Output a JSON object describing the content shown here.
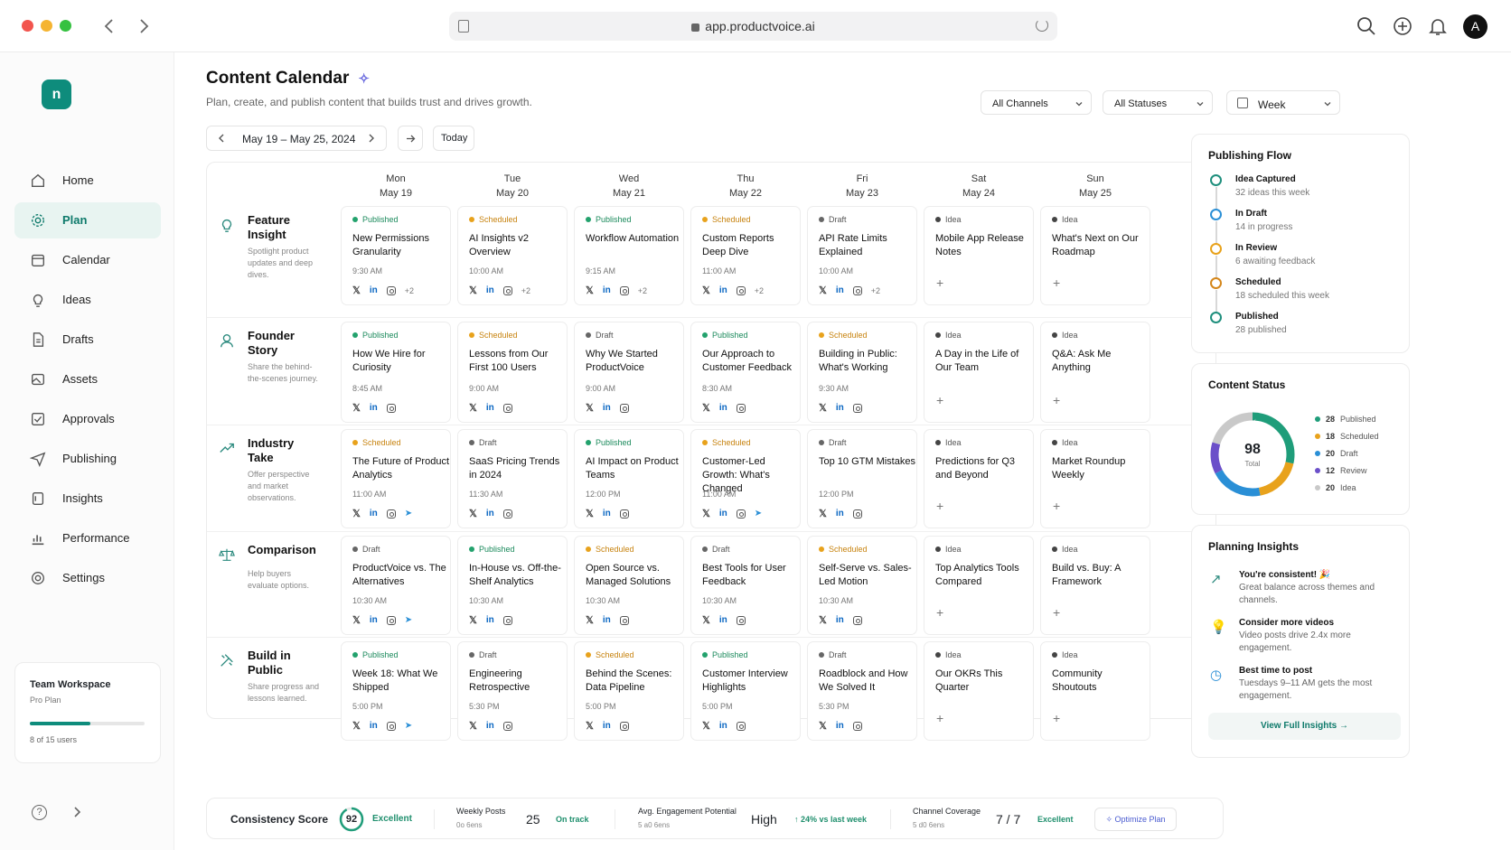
{
  "browser": {
    "url": "app.productvoice.ai",
    "avatar": "A"
  },
  "sidebar": {
    "logo": "n",
    "items": [
      {
        "label": "Home",
        "icon": "home-icon"
      },
      {
        "label": "Plan",
        "icon": "gear-icon",
        "active": true
      },
      {
        "label": "Calendar",
        "icon": "calendar-icon"
      },
      {
        "label": "Ideas",
        "icon": "lightbulb-icon"
      },
      {
        "label": "Drafts",
        "icon": "document-icon"
      },
      {
        "label": "Assets",
        "icon": "image-icon"
      },
      {
        "label": "Approvals",
        "icon": "check-icon"
      },
      {
        "label": "Publishing",
        "icon": "send-icon"
      },
      {
        "label": "Insights",
        "icon": "layers-icon"
      },
      {
        "label": "Performance",
        "icon": "bar-chart-icon"
      },
      {
        "label": "Settings",
        "icon": "settings-icon"
      }
    ],
    "workspace": {
      "name": "Team Workspace",
      "plan": "Pro Plan",
      "usage": "8 of 15 users",
      "progress": 0.53
    }
  },
  "header": {
    "title": "Content Calendar",
    "subtitle": "Plan, create, and publish content that builds trust and drives growth.",
    "filters": {
      "channels": "All Channels",
      "statuses": "All Statuses",
      "view": "Week"
    },
    "date_range": "May 19 – May 25, 2024",
    "today": "Today"
  },
  "days": [
    {
      "name": "Mon",
      "date": "May 19"
    },
    {
      "name": "Tue",
      "date": "May 20"
    },
    {
      "name": "Wed",
      "date": "May 21"
    },
    {
      "name": "Thu",
      "date": "May 22"
    },
    {
      "name": "Fri",
      "date": "May 23"
    },
    {
      "name": "Sat",
      "date": "May 24"
    },
    {
      "name": "Sun",
      "date": "May 25"
    }
  ],
  "status_colors": {
    "Published": "#23a26d",
    "Scheduled": "#e8a21c",
    "Draft": "#666666",
    "Idea": "#444444"
  },
  "rows": [
    {
      "title": "Feature Insight",
      "desc": "Spotlight product updates and deep dives.",
      "icon": "lightbulb-icon",
      "cards": [
        {
          "status": "Published",
          "title": "New Permissions Granularity",
          "time": "9:30 AM",
          "channels": [
            "x",
            "in",
            "ig",
            "+2"
          ]
        },
        {
          "status": "Scheduled",
          "title": "AI Insights v2 Overview",
          "time": "10:00 AM",
          "channels": [
            "x",
            "in",
            "ig",
            "+2"
          ]
        },
        {
          "status": "Published",
          "title": "Workflow Automation",
          "time": "9:15 AM",
          "channels": [
            "x",
            "in",
            "ig",
            "+2"
          ]
        },
        {
          "status": "Scheduled",
          "title": "Custom Reports Deep Dive",
          "time": "11:00 AM",
          "channels": [
            "x",
            "in",
            "ig",
            "+2"
          ]
        },
        {
          "status": "Draft",
          "title": "API Rate Limits Explained",
          "time": "10:00 AM",
          "channels": [
            "x",
            "in",
            "ig",
            "+2"
          ]
        },
        {
          "status": "Idea",
          "title": "Mobile App Release Notes",
          "time": "",
          "channels": []
        },
        {
          "status": "Idea",
          "title": "What's Next on Our Roadmap",
          "time": "",
          "channels": []
        }
      ]
    },
    {
      "title": "Founder Story",
      "desc": "Share the behind-the-scenes journey.",
      "icon": "user-icon",
      "cards": [
        {
          "status": "Published",
          "title": "How We Hire for Curiosity",
          "time": "8:45 AM",
          "channels": [
            "x",
            "in",
            "ig"
          ]
        },
        {
          "status": "Scheduled",
          "title": "Lessons from Our First 100 Users",
          "time": "9:00 AM",
          "channels": [
            "x",
            "in",
            "ig"
          ]
        },
        {
          "status": "Draft",
          "title": "Why We Started ProductVoice",
          "time": "9:00 AM",
          "channels": [
            "x",
            "in",
            "ig"
          ]
        },
        {
          "status": "Published",
          "title": "Our Approach to Customer Feedback",
          "time": "8:30 AM",
          "channels": [
            "x",
            "in",
            "ig"
          ]
        },
        {
          "status": "Scheduled",
          "title": "Building in Public: What's Working",
          "time": "9:30 AM",
          "channels": [
            "x",
            "in",
            "ig"
          ]
        },
        {
          "status": "Idea",
          "title": "A Day in the Life of Our Team",
          "time": "",
          "channels": []
        },
        {
          "status": "Idea",
          "title": "Q&A: Ask Me Anything",
          "time": "",
          "channels": []
        }
      ]
    },
    {
      "title": "Industry Take",
      "desc": "Offer perspective and market observations.",
      "icon": "trend-icon",
      "cards": [
        {
          "status": "Scheduled",
          "title": "The Future of Product Analytics",
          "time": "11:00 AM",
          "channels": [
            "x",
            "in",
            "ig",
            "tg"
          ]
        },
        {
          "status": "Draft",
          "title": "SaaS Pricing Trends in 2024",
          "time": "11:30 AM",
          "channels": [
            "x",
            "in",
            "ig"
          ]
        },
        {
          "status": "Published",
          "title": "AI Impact on Product Teams",
          "time": "12:00 PM",
          "channels": [
            "x",
            "in",
            "ig"
          ]
        },
        {
          "status": "Scheduled",
          "title": "Customer-Led Growth: What's Changed",
          "time": "11:00 AM",
          "channels": [
            "x",
            "in",
            "ig",
            "tg"
          ]
        },
        {
          "status": "Draft",
          "title": "Top 10 GTM Mistakes",
          "time": "12:00 PM",
          "channels": [
            "x",
            "in",
            "ig"
          ]
        },
        {
          "status": "Idea",
          "title": "Predictions for Q3 and Beyond",
          "time": "",
          "channels": []
        },
        {
          "status": "Idea",
          "title": "Market Roundup Weekly",
          "time": "",
          "channels": []
        }
      ]
    },
    {
      "title": "Comparison",
      "desc": "Help buyers evaluate options.",
      "icon": "scale-icon",
      "cards": [
        {
          "status": "Draft",
          "title": "ProductVoice vs. The Alternatives",
          "time": "10:30 AM",
          "channels": [
            "x",
            "in",
            "ig",
            "tg"
          ]
        },
        {
          "status": "Published",
          "title": "In-House vs. Off-the-Shelf Analytics",
          "time": "10:30 AM",
          "channels": [
            "x",
            "in",
            "ig"
          ]
        },
        {
          "status": "Scheduled",
          "title": "Open Source vs. Managed Solutions",
          "time": "10:30 AM",
          "channels": [
            "x",
            "in",
            "ig"
          ]
        },
        {
          "status": "Draft",
          "title": "Best Tools for User Feedback",
          "time": "10:30 AM",
          "channels": [
            "x",
            "in",
            "ig"
          ]
        },
        {
          "status": "Scheduled",
          "title": "Self-Serve vs. Sales-Led Motion",
          "time": "10:30 AM",
          "channels": [
            "x",
            "in",
            "ig"
          ]
        },
        {
          "status": "Idea",
          "title": "Top Analytics Tools Compared",
          "time": "",
          "channels": []
        },
        {
          "status": "Idea",
          "title": "Build vs. Buy: A Framework",
          "time": "",
          "channels": []
        }
      ]
    },
    {
      "title": "Build in Public",
      "desc": "Share progress and lessons learned.",
      "icon": "tools-icon",
      "cards": [
        {
          "status": "Published",
          "title": "Week 18: What We Shipped",
          "time": "5:00 PM",
          "channels": [
            "x",
            "in",
            "ig",
            "tg"
          ]
        },
        {
          "status": "Draft",
          "title": "Engineering Retrospective",
          "time": "5:30 PM",
          "channels": [
            "x",
            "in",
            "ig"
          ]
        },
        {
          "status": "Scheduled",
          "title": "Behind the Scenes: Data Pipeline",
          "time": "5:00 PM",
          "channels": [
            "x",
            "in",
            "ig"
          ]
        },
        {
          "status": "Published",
          "title": "Customer Interview Highlights",
          "time": "5:00 PM",
          "channels": [
            "x",
            "in",
            "ig"
          ]
        },
        {
          "status": "Draft",
          "title": "Roadblock and How We Solved It",
          "time": "5:30 PM",
          "channels": [
            "x",
            "in",
            "ig"
          ]
        },
        {
          "status": "Idea",
          "title": "Our OKRs This Quarter",
          "time": "",
          "channels": []
        },
        {
          "status": "Idea",
          "title": "Community Shoutouts",
          "time": "",
          "channels": []
        }
      ]
    }
  ],
  "publishing_flow": {
    "title": "Publishing Flow",
    "steps": [
      {
        "name": "Idea Captured",
        "detail": "32 ideas this week",
        "color": "#1f8f7d"
      },
      {
        "name": "In Draft",
        "detail": "14 in progress",
        "color": "#2a8fd6"
      },
      {
        "name": "In Review",
        "detail": "6 awaiting feedback",
        "color": "#e8a21c"
      },
      {
        "name": "Scheduled",
        "detail": "18 scheduled this week",
        "color": "#d4861a"
      },
      {
        "name": "Published",
        "detail": "28 published",
        "color": "#1f8f7d"
      }
    ]
  },
  "content_status": {
    "title": "Content Status",
    "total": "98",
    "total_label": "Total",
    "items": [
      {
        "count": 28,
        "label": "Published",
        "color": "#1f9d7a"
      },
      {
        "count": 18,
        "label": "Scheduled",
        "color": "#e8a21c"
      },
      {
        "count": 20,
        "label": "Draft",
        "color": "#2a8fd6"
      },
      {
        "count": 12,
        "label": "Review",
        "color": "#6b4fc9"
      },
      {
        "count": 20,
        "label": "Idea",
        "color": "#c9c9c9"
      }
    ]
  },
  "planning_insights": {
    "title": "Planning Insights",
    "items": [
      {
        "title": "You're consistent! 🎉",
        "text": "Great balance across themes and channels."
      },
      {
        "title": "Consider more videos",
        "text": "Video posts drive 2.4x more engagement."
      },
      {
        "title": "Best time to post",
        "text": "Tuesdays 9–11 AM gets the most engagement."
      }
    ],
    "cta": "View Full Insights"
  },
  "bottom_bar": {
    "consistency_label": "Consistency Score",
    "consistency_value": "92",
    "consistency_badge": "Excellent",
    "weekly_label": "Weekly Posts",
    "weekly_sub": "0o 6ens",
    "weekly_value": "25",
    "weekly_badge": "On track",
    "engagement_label": "Avg. Engagement Potential",
    "engagement_sub": "5 a0 6ens",
    "engagement_value": "High",
    "engagement_badge": "↑ 24% vs last week",
    "coverage_label": "Channel Coverage",
    "coverage_sub": "5 d0 6ens",
    "coverage_value": "7 / 7",
    "coverage_badge": "Excellent",
    "optimize": "Optimize Plan"
  }
}
